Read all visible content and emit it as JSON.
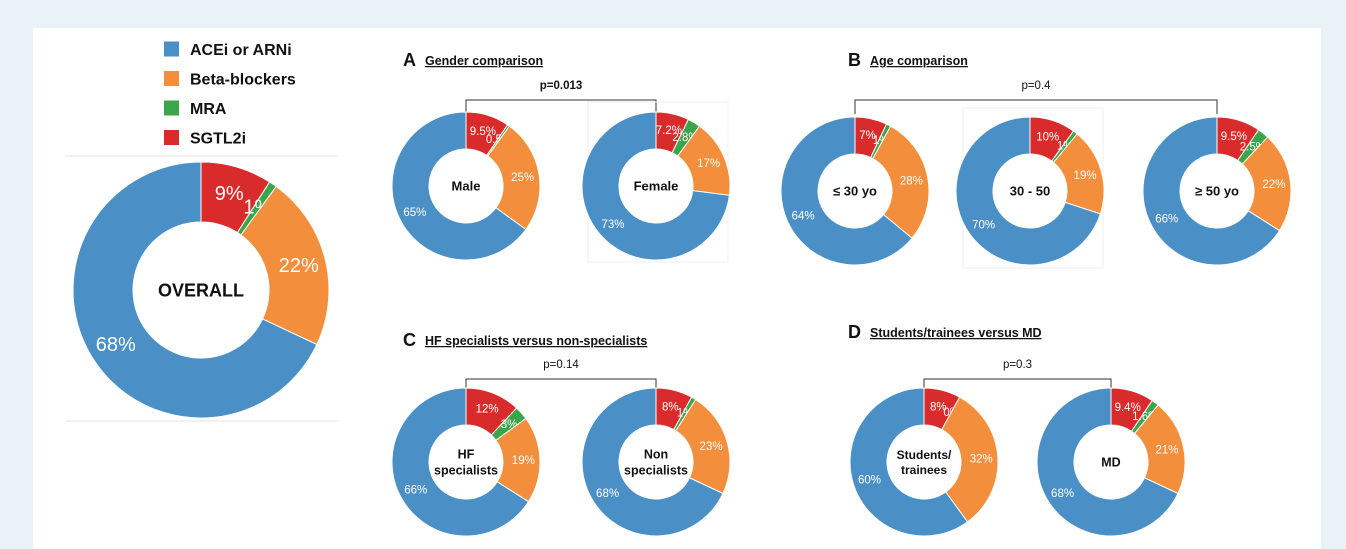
{
  "colors": {
    "ACEi or ARNi": "#4a90c6",
    "Beta-blockers": "#f28e3c",
    "MRA": "#3aa54a",
    "SGTL2i": "#d92b2b",
    "background": "#e9f3f7"
  },
  "legend": {
    "entries": [
      {
        "label": "ACEi or ARNi",
        "color": "#4a90c6"
      },
      {
        "label": "Beta-blockers",
        "color": "#f28e3c"
      },
      {
        "label": "MRA",
        "color": "#3aa54a"
      },
      {
        "label": "SGTL2i",
        "color": "#d92b2b"
      }
    ]
  },
  "panels": [
    {
      "letter": "",
      "title": "",
      "pvalue": ""
    },
    {
      "letter": "A",
      "title": "Gender comparison",
      "pvalue": "p=0.013"
    },
    {
      "letter": "B",
      "title": "Age comparison",
      "pvalue": "p=0.4"
    },
    {
      "letter": "C",
      "title": "HF specialists versus non-specialists",
      "pvalue": "p=0.14"
    },
    {
      "letter": "D",
      "title": "Students/trainees versus MD",
      "pvalue": "p=0.3"
    }
  ],
  "chart_data": [
    {
      "type": "pie",
      "panel": "",
      "center_label": [
        "OVERALL"
      ],
      "categories": [
        "SGTL2i",
        "MRA",
        "Beta-blockers",
        "ACEi or ARNi"
      ],
      "values": [
        9,
        1,
        22,
        68
      ],
      "data_labels": [
        "9%",
        "1%",
        "22%",
        "68%"
      ]
    },
    {
      "type": "pie",
      "panel": "A",
      "center_label": [
        "Male"
      ],
      "categories": [
        "SGTL2i",
        "MRA",
        "Beta-blockers",
        "ACEi or ARNi"
      ],
      "values": [
        9.5,
        0.5,
        25,
        65
      ],
      "data_labels": [
        "9.5%",
        "0.5%",
        "25%",
        "65%"
      ]
    },
    {
      "type": "pie",
      "panel": "A",
      "center_label": [
        "Female"
      ],
      "categories": [
        "SGTL2i",
        "MRA",
        "Beta-blockers",
        "ACEi or ARNi"
      ],
      "values": [
        7.2,
        2.8,
        17,
        73
      ],
      "data_labels": [
        "7.2%",
        "2.8%",
        "17%",
        "73%"
      ]
    },
    {
      "type": "pie",
      "panel": "B",
      "center_label": [
        "≤ 30 yo"
      ],
      "categories": [
        "SGTL2i",
        "MRA",
        "Beta-blockers",
        "ACEi or ARNi"
      ],
      "values": [
        7,
        1,
        28,
        64
      ],
      "data_labels": [
        "7%",
        "1%",
        "28%",
        "64%"
      ]
    },
    {
      "type": "pie",
      "panel": "B",
      "center_label": [
        "30 - 50"
      ],
      "categories": [
        "SGTL2i",
        "MRA",
        "Beta-blockers",
        "ACEi or ARNi"
      ],
      "values": [
        10,
        1,
        19,
        70
      ],
      "data_labels": [
        "10%",
        "1%",
        "19%",
        "70%"
      ]
    },
    {
      "type": "pie",
      "panel": "B",
      "center_label": [
        "≥ 50 yo"
      ],
      "categories": [
        "SGTL2i",
        "MRA",
        "Beta-blockers",
        "ACEi or ARNi"
      ],
      "values": [
        9.5,
        2.5,
        22,
        66
      ],
      "data_labels": [
        "9.5%",
        "2.5%",
        "22%",
        "66%"
      ]
    },
    {
      "type": "pie",
      "panel": "C",
      "center_label": [
        "HF",
        "specialists"
      ],
      "categories": [
        "SGTL2i",
        "MRA",
        "Beta-blockers",
        "ACEi or ARNi"
      ],
      "values": [
        12,
        3,
        19,
        66
      ],
      "data_labels": [
        "12%",
        "3%",
        "19%",
        "66%"
      ]
    },
    {
      "type": "pie",
      "panel": "C",
      "center_label": [
        "Non",
        "specialists"
      ],
      "categories": [
        "SGTL2i",
        "MRA",
        "Beta-blockers",
        "ACEi or ARNi"
      ],
      "values": [
        8,
        1,
        23,
        68
      ],
      "data_labels": [
        "8%",
        "1%",
        "23%",
        "68%"
      ]
    },
    {
      "type": "pie",
      "panel": "D",
      "center_label": [
        "Students/",
        "trainees"
      ],
      "categories": [
        "SGTL2i",
        "MRA",
        "Beta-blockers",
        "ACEi or ARNi"
      ],
      "values": [
        8,
        0,
        32,
        60
      ],
      "data_labels": [
        "8%",
        "0%",
        "32%",
        "60%"
      ]
    },
    {
      "type": "pie",
      "panel": "D",
      "center_label": [
        "MD"
      ],
      "categories": [
        "SGTL2i",
        "MRA",
        "Beta-blockers",
        "ACEi or ARNi"
      ],
      "values": [
        9.4,
        1.6,
        21,
        68
      ],
      "data_labels": [
        "9.4%",
        "1.6%",
        "21%",
        "68%"
      ]
    }
  ]
}
